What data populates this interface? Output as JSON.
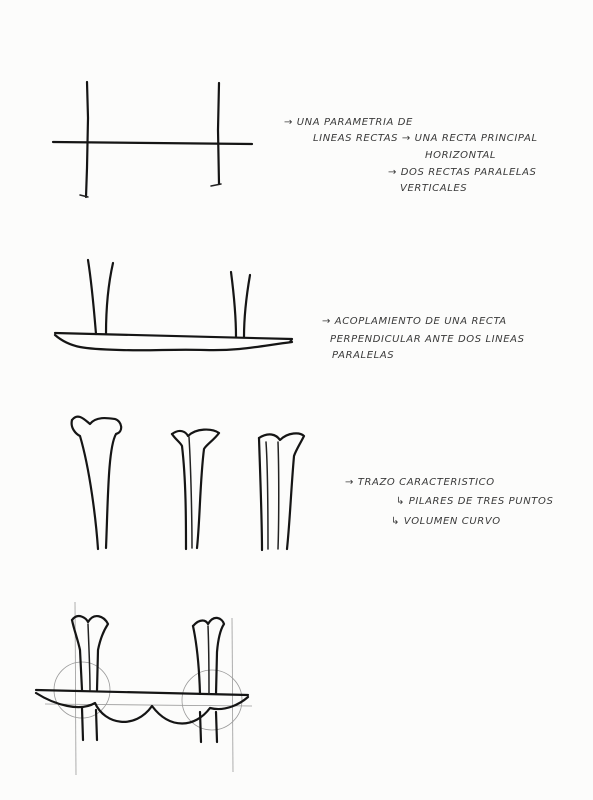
{
  "sections": [
    {
      "id": "grid",
      "notes": [
        "→ UNA PARAMETRIA DE",
        "LINEAS RECTAS → UNA RECTA PRINCIPAL",
        "HORIZONTAL",
        "→ DOS RECTAS PARALELAS",
        "VERTICALES"
      ]
    },
    {
      "id": "coupling",
      "notes": [
        "→ ACOPLAMIENTO DE UNA RECTA",
        "PERPENDICULAR ANTE DOS LINEAS",
        "PARALELAS"
      ]
    },
    {
      "id": "pillars",
      "notes": [
        "→ TRAZO CARACTERISTICO",
        "↳ PILARES DE TRES PUNTOS",
        "↳ VOLUMEN CURVO"
      ]
    },
    {
      "id": "combined",
      "notes": []
    }
  ]
}
